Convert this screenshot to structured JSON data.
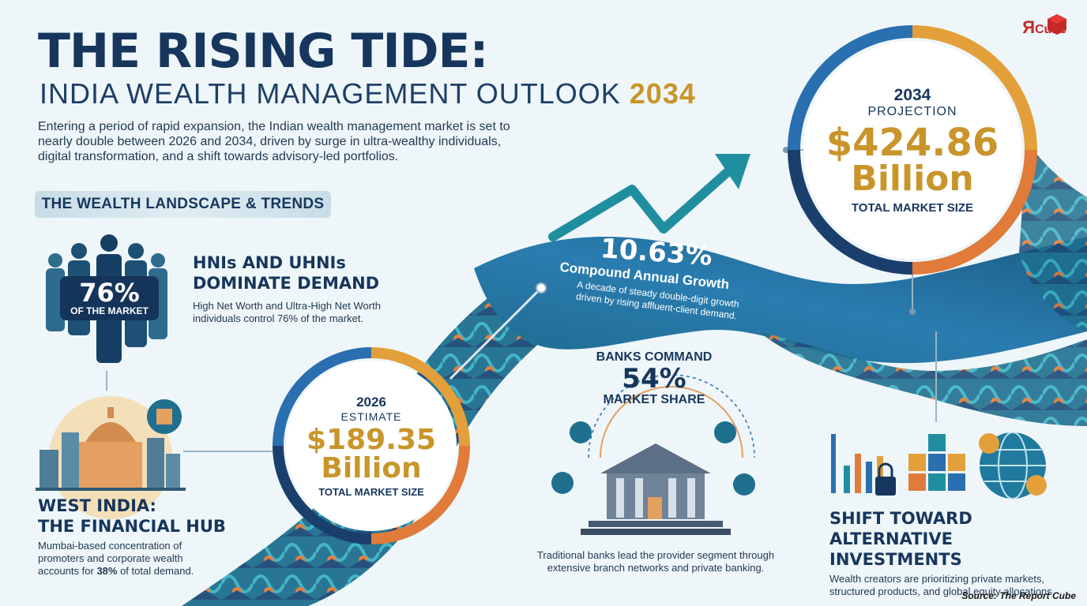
{
  "header": {
    "title": "THE RISING TIDE:",
    "subtitle_prefix": "INDIA WEALTH MANAGEMENT OUTLOOK",
    "subtitle_year": "2034",
    "intro": "Entering a period of rapid expansion, the Indian wealth management market is set to nearly double between 2026 and 2034, driven by surge in ultra-wealthy individuals, digital transformation, and a shift towards advisory-led portfolios."
  },
  "logo": {
    "letter": "Я",
    "text": "Cube"
  },
  "section_ribbon": "THE WEALTH LANDSCAPE & TRENDS",
  "hni": {
    "badge_value": "76%",
    "badge_label": "OF THE MARKET",
    "heading_line1": "HNIs AND UHNIs",
    "heading_line2": "DOMINATE DEMAND",
    "text": "High Net Worth and Ultra-High Net Worth individuals control 76% of the market."
  },
  "west": {
    "heading_line1": "WEST INDIA:",
    "heading_line2": "THE FINANCIAL HUB",
    "text_before": "Mumbai-based concentration of promoters and corporate wealth accounts for ",
    "text_highlight": "38%",
    "text_after": " of total demand."
  },
  "estimate_2026": {
    "year": "2026",
    "label": "ESTIMATE",
    "value_line1": "$189.35",
    "value_line2": "Billion",
    "footer": "TOTAL MARKET SIZE"
  },
  "projection_2034": {
    "year": "2034",
    "label": "PROJECTION",
    "value_line1": "$424.86",
    "value_line2": "Billion",
    "footer": "TOTAL MARKET SIZE"
  },
  "cagr": {
    "value": "10.63%",
    "label": "Compound Annual Growth",
    "note": "A decade of steady double-digit growth driven by rising affluent-client demand."
  },
  "banks": {
    "heading_line1": "BANKS COMMAND",
    "value": "54%",
    "heading_line2": "MARKET SHARE",
    "text": "Traditional banks lead the provider segment through extensive branch networks and private banking."
  },
  "alternatives": {
    "heading_line1": "SHIFT TOWARD",
    "heading_line2": "ALTERNATIVE INVESTMENTS",
    "text": "Wealth creators are prioritizing private markets, structured products, and global equity allocations."
  },
  "source": "Source: The Report Cube",
  "colors": {
    "navy": "#17365d",
    "gold": "#c9952b",
    "teal": "#1f8fa0",
    "orange": "#e07b39",
    "blue": "#2a6fb0"
  },
  "icons": [
    "people-group-icon",
    "city-skyline-icon",
    "bank-building-icon",
    "growth-arrow-icon",
    "bar-chart-lock-icon",
    "cubes-icon",
    "globe-dollar-icon",
    "logo-cube-icon"
  ]
}
